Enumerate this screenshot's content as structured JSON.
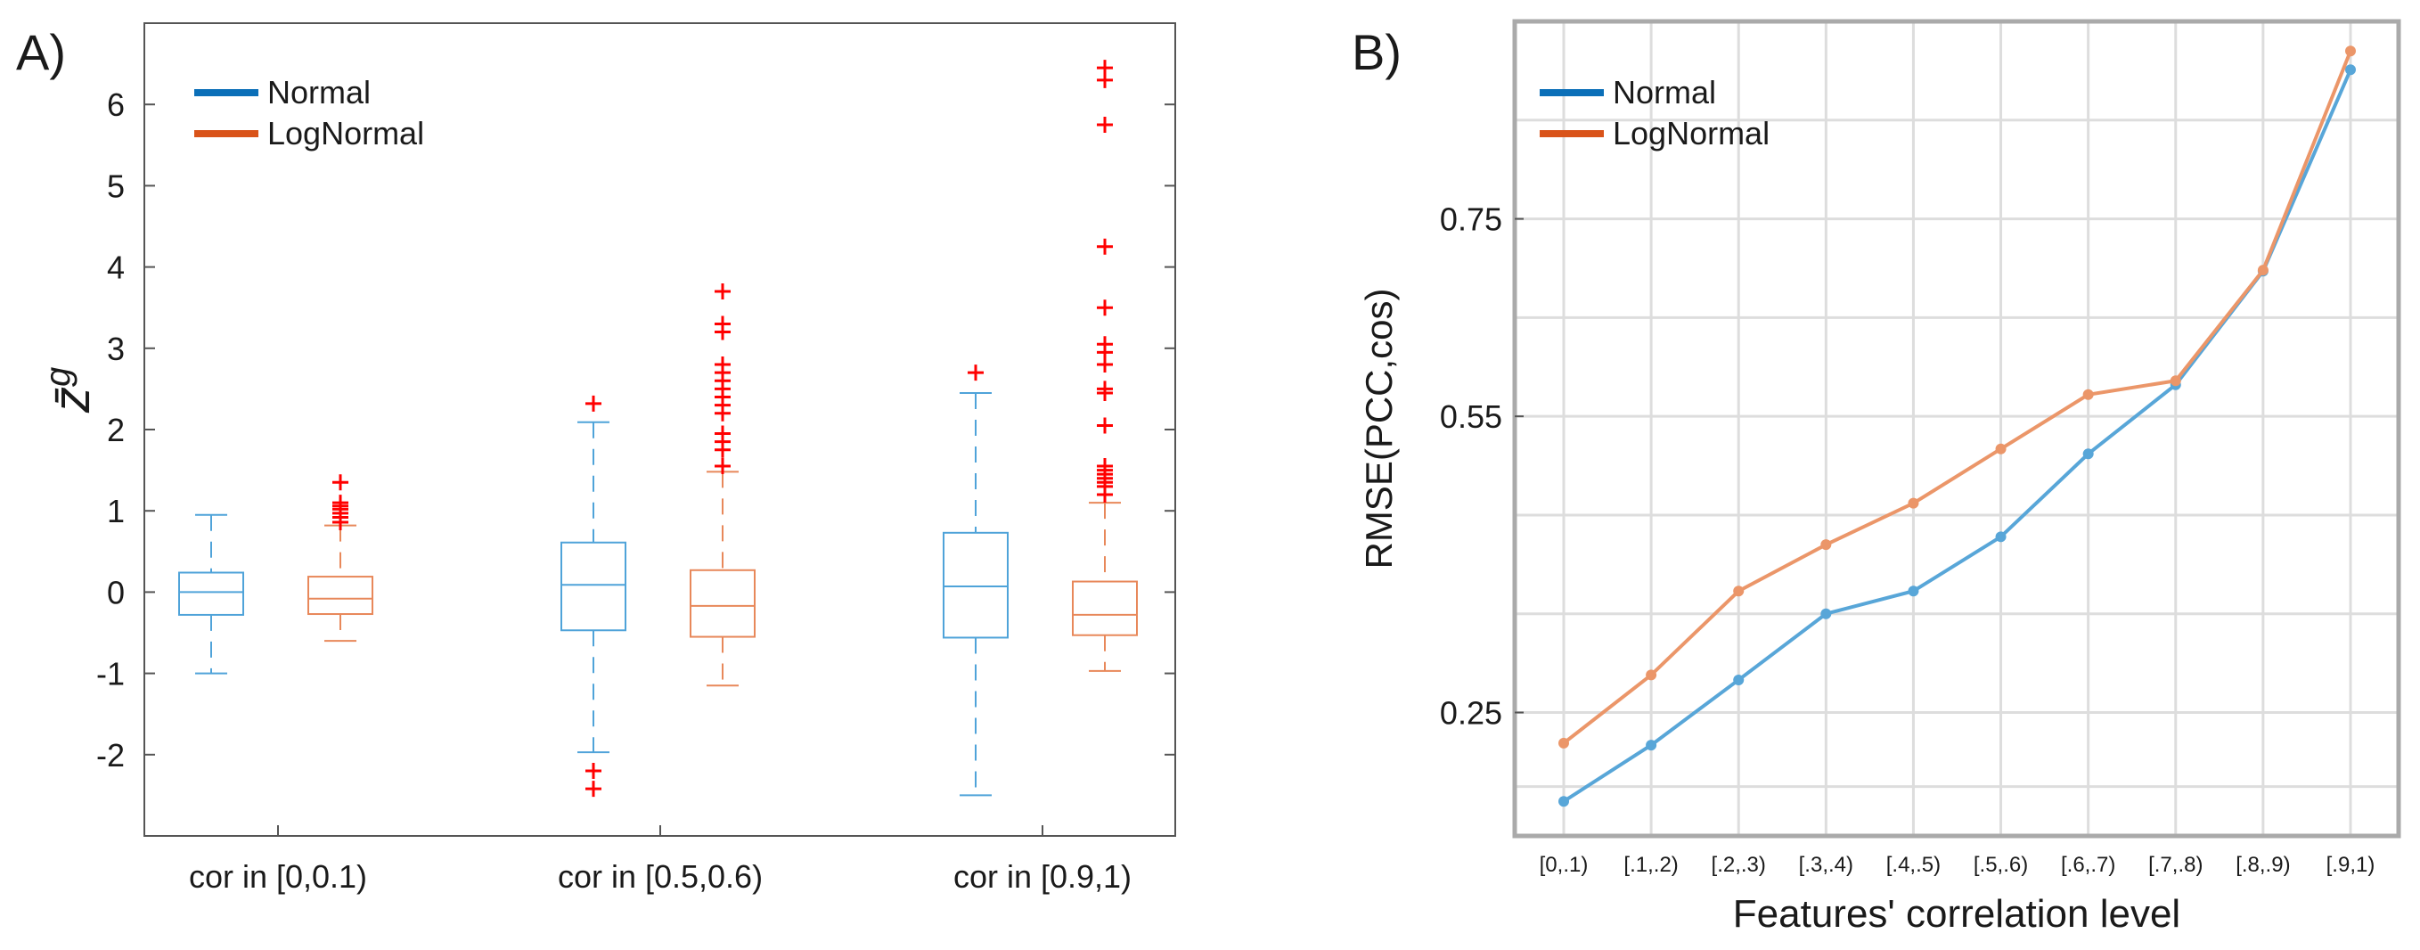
{
  "chart_data": [
    {
      "type": "boxplot",
      "panel_label": "A)",
      "ylabel": "z̄",
      "ylabel_superscript": "g",
      "ylim": [
        -3,
        7
      ],
      "yticks": [
        -2,
        -1,
        0,
        1,
        2,
        3,
        4,
        5,
        6
      ],
      "categories": [
        "cor in [0,0.1)",
        "cor in [0.5,0.6)",
        "cor in [0.9,1)"
      ],
      "legend": {
        "position": "top-left"
      },
      "colors": {
        "Normal": "#4fa3d9",
        "LogNormal": "#e8885a",
        "outlier": "#ff0000",
        "legend_Normal": "#0b6fb8",
        "legend_LogNormal": "#d95319"
      },
      "series": [
        {
          "name": "Normal",
          "boxes": [
            {
              "whisker_low": -1.0,
              "q1": -0.28,
              "median": 0.0,
              "q3": 0.24,
              "whisker_high": 0.95,
              "outliers": []
            },
            {
              "whisker_low": -1.97,
              "q1": -0.47,
              "median": 0.09,
              "q3": 0.61,
              "whisker_high": 2.09,
              "outliers": [
                -2.2,
                -2.42,
                2.32
              ]
            },
            {
              "whisker_low": -2.5,
              "q1": -0.56,
              "median": 0.07,
              "q3": 0.73,
              "whisker_high": 2.45,
              "outliers": [
                2.7
              ]
            }
          ]
        },
        {
          "name": "LogNormal",
          "boxes": [
            {
              "whisker_low": -0.6,
              "q1": -0.27,
              "median": -0.08,
              "q3": 0.19,
              "whisker_high": 0.82,
              "outliers": [
                0.86,
                0.92,
                0.97,
                1.02,
                1.06,
                1.1,
                1.35
              ]
            },
            {
              "whisker_low": -1.15,
              "q1": -0.55,
              "median": -0.17,
              "q3": 0.27,
              "whisker_high": 1.48,
              "outliers": [
                1.55,
                1.75,
                1.85,
                1.95,
                2.2,
                2.3,
                2.4,
                2.5,
                2.6,
                2.7,
                2.8,
                3.2,
                3.3,
                3.7
              ]
            },
            {
              "whisker_low": -0.97,
              "q1": -0.53,
              "median": -0.28,
              "q3": 0.13,
              "whisker_high": 1.1,
              "outliers": [
                1.2,
                1.3,
                1.35,
                1.4,
                1.45,
                1.5,
                1.55,
                2.05,
                2.45,
                2.5,
                2.8,
                2.95,
                3.05,
                3.5,
                4.25,
                5.75,
                6.3,
                6.45
              ]
            }
          ]
        }
      ]
    },
    {
      "type": "line",
      "panel_label": "B)",
      "xlabel": "Features' correlation level",
      "ylabel": "RMSE(PCC,cos)",
      "ylim": [
        0.125,
        0.95
      ],
      "yticks": [
        0.25,
        0.55,
        0.75
      ],
      "ytick_labels": [
        "0.25",
        "0.55",
        "0.75"
      ],
      "grid": true,
      "legend": {
        "position": "top-left"
      },
      "categories": [
        "[0,.1)",
        "[.1,.2)",
        "[.2,.3)",
        "[.3,.4)",
        "[.4,.5)",
        "[.5,.6)",
        "[.6,.7)",
        "[.7,.8)",
        "[.8,.9)",
        "[.9,1)"
      ],
      "colors": {
        "Normal": "#58a6d8",
        "LogNormal": "#eb9669",
        "legend_Normal": "#0b6fb8",
        "legend_LogNormal": "#d95319"
      },
      "series": [
        {
          "name": "Normal",
          "values": [
            0.16,
            0.217,
            0.283,
            0.35,
            0.373,
            0.428,
            0.512,
            0.582,
            0.697,
            0.901
          ]
        },
        {
          "name": "LogNormal",
          "values": [
            0.219,
            0.288,
            0.373,
            0.42,
            0.462,
            0.517,
            0.572,
            0.586,
            0.698,
            0.92
          ]
        }
      ]
    }
  ]
}
